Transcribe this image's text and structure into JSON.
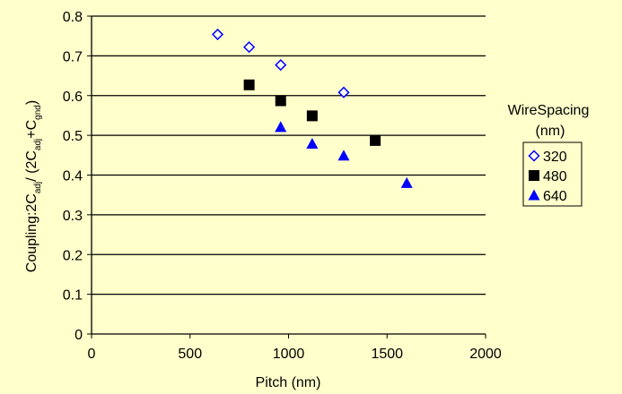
{
  "chart_data": {
    "type": "scatter",
    "title": "",
    "xlabel": "Pitch (nm)",
    "ylabel_parts": [
      "Coupling:2C",
      "adj",
      "/ (2C",
      "adj",
      "+C",
      "gnd",
      ")"
    ],
    "xlim": [
      0,
      2000
    ],
    "ylim": [
      0,
      0.8
    ],
    "xticks": [
      0,
      500,
      1000,
      1500,
      2000
    ],
    "yticks": [
      0,
      0.1,
      0.2,
      0.3,
      0.4,
      0.5,
      0.6,
      0.7,
      0.8
    ],
    "ytick_labels": [
      "0",
      "0.1",
      "0.2",
      "0.3",
      "0.4",
      "0.5",
      "0.6",
      "0.7",
      "0.8"
    ],
    "grid": "horizontal",
    "legend": {
      "title_line1": "WireSpacing",
      "title_line2": "(nm)",
      "placement": "right"
    },
    "series": [
      {
        "name": "320",
        "marker": "diamond-open",
        "color": "#0000ff",
        "points": [
          [
            640,
            0.754
          ],
          [
            800,
            0.722
          ],
          [
            960,
            0.677
          ],
          [
            1280,
            0.608
          ]
        ]
      },
      {
        "name": "480",
        "marker": "square",
        "color": "#000000",
        "points": [
          [
            800,
            0.627
          ],
          [
            960,
            0.587
          ],
          [
            1120,
            0.549
          ],
          [
            1440,
            0.487
          ]
        ]
      },
      {
        "name": "640",
        "marker": "triangle",
        "color": "#0000ff",
        "points": [
          [
            960,
            0.521
          ],
          [
            1120,
            0.479
          ],
          [
            1280,
            0.449
          ],
          [
            1600,
            0.38
          ]
        ]
      }
    ]
  }
}
